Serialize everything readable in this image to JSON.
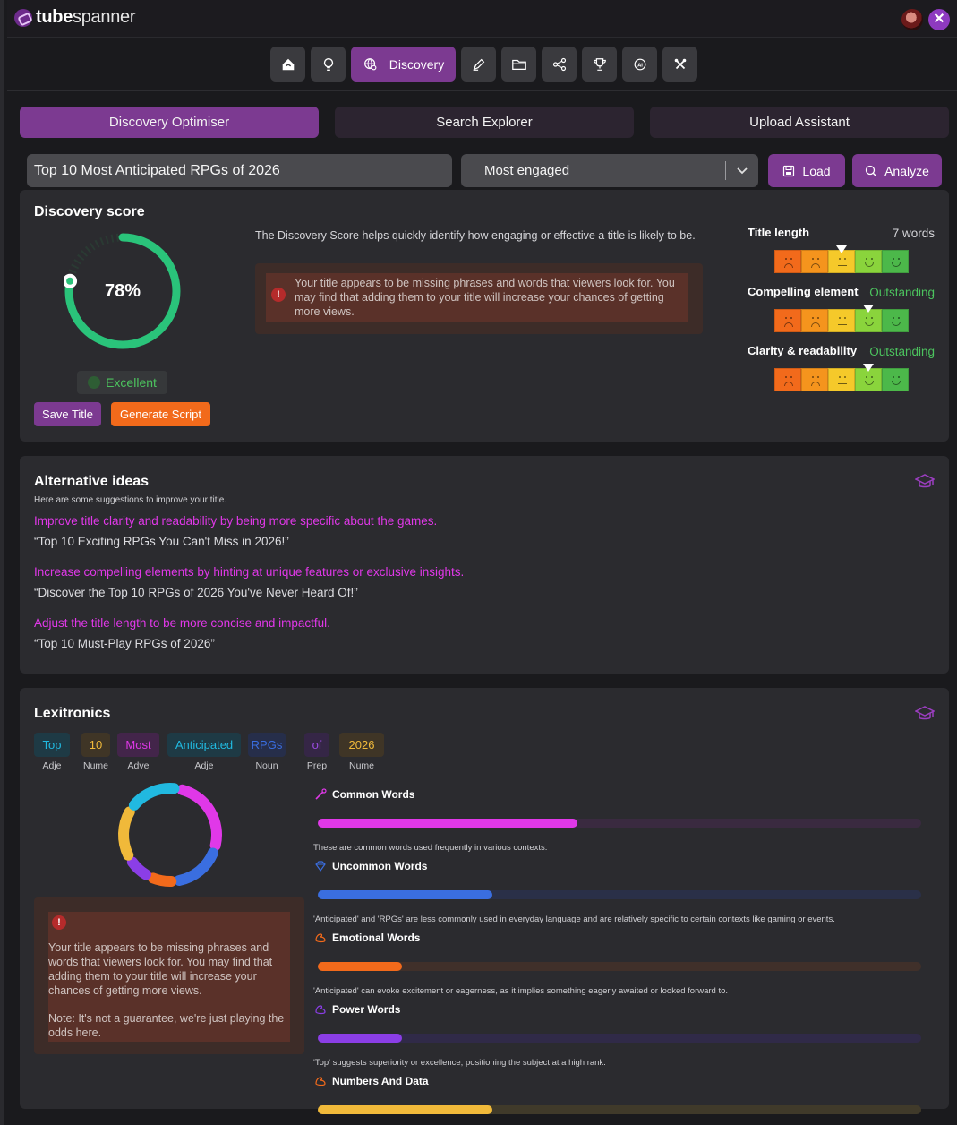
{
  "app": {
    "brand_bold": "tube",
    "brand_rest": "spanner",
    "close_glyph": "✕"
  },
  "nav": {
    "active_label": "Discovery",
    "icons": [
      "home-icon",
      "lightbulb-icon",
      "discovery-icon",
      "pen-icon",
      "folder-icon",
      "share-icon",
      "trophy-icon",
      "ai-icon",
      "tools-icon"
    ]
  },
  "tabs": [
    "Discovery Optimiser",
    "Search Explorer",
    "Upload Assistant"
  ],
  "search": {
    "title_value": "Top 10 Most Anticipated RPGs of 2026",
    "sort_value": "Most engaged",
    "load_label": "Load",
    "analyze_label": "Analyze"
  },
  "discovery": {
    "heading": "Discovery score",
    "score_text": "78%",
    "score_value": 78,
    "rating": "Excellent",
    "save_label": "Save Title",
    "script_label": "Generate Script",
    "description": "The Discovery Score helps quickly identify how engaging or effective a title is likely to be.",
    "warning": "Your title appears to be missing phrases and words that viewers look for. You may find that adding them to your title will increase your chances of getting more views.",
    "warning_glyph": "!",
    "metrics": [
      {
        "label": "Title length",
        "value": "7 words",
        "level": 3,
        "value_color": "#d4d4d8"
      },
      {
        "label": "Compelling element",
        "value": "Outstanding",
        "level": 4,
        "value_color": "#4cc35e"
      },
      {
        "label": "Clarity & readability",
        "value": "Outstanding",
        "level": 4,
        "value_color": "#4cc35e"
      }
    ],
    "face_colors": [
      "#f26a1b",
      "#f5941d",
      "#f5c92a",
      "#8ad43c",
      "#4cb84a"
    ]
  },
  "alternatives": {
    "heading": "Alternative ideas",
    "hint": "Here are some suggestions to improve your title.",
    "items": [
      {
        "reason": "Improve title clarity and readability by being more specific about the games.",
        "title": "“Top 10 Exciting RPGs You Can't Miss in 2026!”"
      },
      {
        "reason": "Increase compelling elements by hinting at unique features or exclusive insights.",
        "title": "“Discover the Top 10 RPGs of 2026 You've Never Heard Of!”"
      },
      {
        "reason": "Adjust the title length to be more concise and impactful.",
        "title": "“Top 10 Must-Play RPGs of 2026”"
      }
    ]
  },
  "lexitronics": {
    "heading": "Lexitronics",
    "tokens": [
      {
        "word": "Top",
        "pos": "Adje",
        "color": "#21b9e0",
        "bg": "#1e3a45"
      },
      {
        "word": "10",
        "pos": "Nume",
        "color": "#f0b93a",
        "bg": "#3f3526"
      },
      {
        "word": "Most",
        "pos": "Adve",
        "color": "#e038e8",
        "bg": "#43254a"
      },
      {
        "word": "Anticipated",
        "pos": "Adje",
        "color": "#21b9e0",
        "bg": "#1e3a45"
      },
      {
        "word": "RPGs",
        "pos": "Noun",
        "color": "#3a6ee0",
        "bg": "#262e4a"
      },
      {
        "word": "of",
        "pos": "Prep",
        "color": "#9a4be0",
        "bg": "#352646"
      },
      {
        "word": "2026",
        "pos": "Nume",
        "color": "#f0b93a",
        "bg": "#3f3526"
      }
    ],
    "donut": [
      {
        "name": "Common",
        "color": "#e038e8",
        "value": 3
      },
      {
        "name": "Uncommon",
        "color": "#3a6ee0",
        "value": 2
      },
      {
        "name": "Emotional",
        "color": "#f26a1b",
        "value": 1
      },
      {
        "name": "Power",
        "color": "#8b3ee6",
        "value": 1
      },
      {
        "name": "Numbers",
        "color": "#f0b93a",
        "value": 2
      },
      {
        "name": "Other",
        "color": "#21b9e0",
        "value": 2
      }
    ],
    "warning": "Your title appears to be missing phrases and words that viewers look for. You may find that adding them to your title will increase your chances of getting more views.",
    "note": "Note: It's not a guarantee, we're just playing the odds here.",
    "categories": [
      {
        "label": "Common Words",
        "fraction": 0.43,
        "color": "#e038e8",
        "track": "#3a2a40",
        "icon": "wand-icon",
        "desc": "These are common words used frequently in various contexts."
      },
      {
        "label": "Uncommon Words",
        "fraction": 0.29,
        "color": "#3a6ee0",
        "track": "#2a3048",
        "icon": "gem-icon",
        "desc": "'Anticipated' and 'RPGs' are less commonly used in everyday language and are relatively specific to certain contexts like gaming or events."
      },
      {
        "label": "Emotional Words",
        "fraction": 0.14,
        "color": "#f26a1b",
        "track": "#40302a",
        "icon": "muscle-icon",
        "desc": "'Anticipated' can evoke excitement or eagerness, as it implies something eagerly awaited or looked forward to."
      },
      {
        "label": "Power Words",
        "fraction": 0.14,
        "color": "#8b3ee6",
        "track": "#302a48",
        "icon": "muscle-icon",
        "desc": "'Top' suggests superiority or excellence, positioning the subject at a high rank."
      },
      {
        "label": "Numbers And Data",
        "fraction": 0.29,
        "color": "#f0b93a",
        "track": "#403a2a",
        "icon": "muscle-icon",
        "desc": ""
      }
    ]
  }
}
